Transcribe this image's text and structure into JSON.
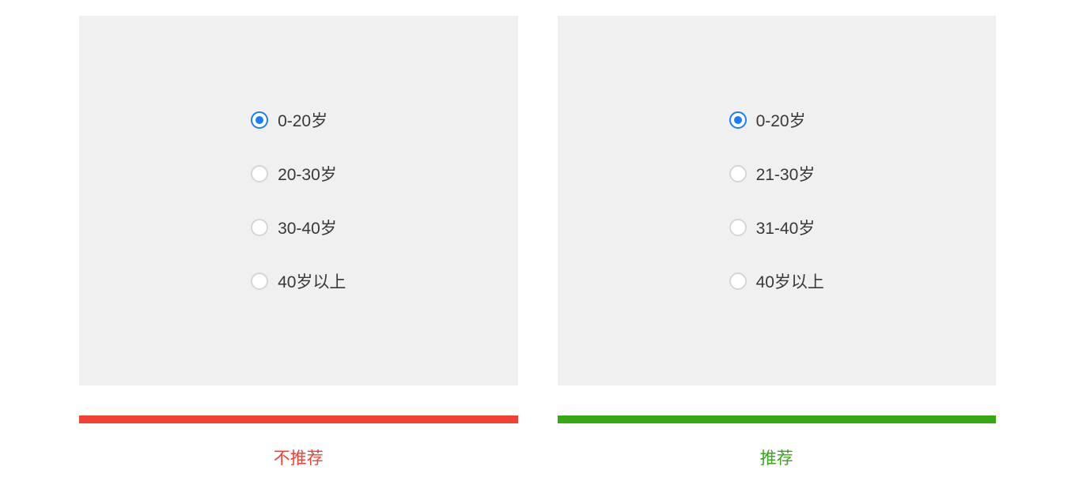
{
  "colors": {
    "panel_bg": "#f0f0f1",
    "radio_border": "#d6d6d8",
    "radio_selected": "#1c7dfa",
    "text": "#383838",
    "bad": "#f04134",
    "good": "#38a715"
  },
  "panels": {
    "left": {
      "options": [
        {
          "label": "0-20岁",
          "selected": true
        },
        {
          "label": "20-30岁",
          "selected": false
        },
        {
          "label": "30-40岁",
          "selected": false
        },
        {
          "label": "40岁以上",
          "selected": false
        }
      ],
      "divider_color": "#f04134",
      "caption": "不推荐",
      "caption_color": "#f04134"
    },
    "right": {
      "options": [
        {
          "label": "0-20岁",
          "selected": true
        },
        {
          "label": "21-30岁",
          "selected": false
        },
        {
          "label": "31-40岁",
          "selected": false
        },
        {
          "label": "40岁以上",
          "selected": false
        }
      ],
      "divider_color": "#38a715",
      "caption": "推荐",
      "caption_color": "#38a715"
    }
  }
}
